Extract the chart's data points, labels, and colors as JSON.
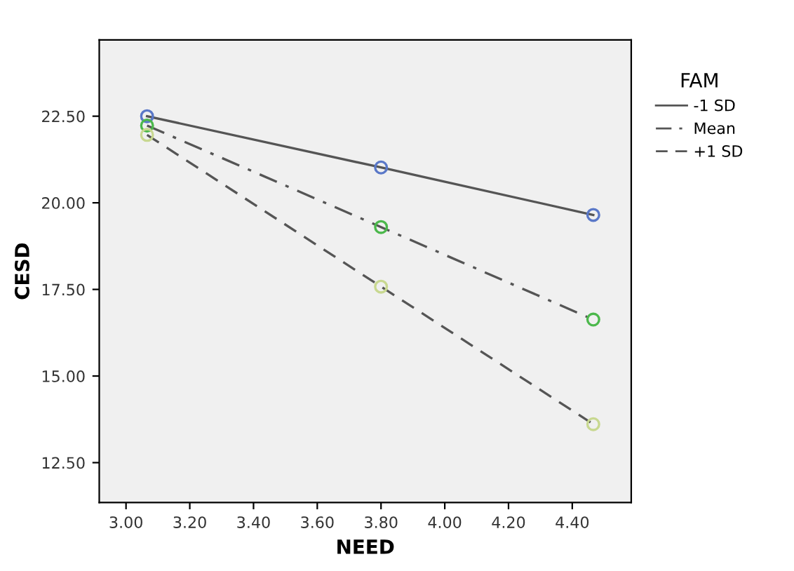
{
  "chart_data": {
    "type": "line",
    "xlabel": "NEED",
    "ylabel": "CESD",
    "legend_title": "FAM",
    "legend": "top right",
    "grid": false,
    "marker": "circle",
    "xlim": [
      2.916,
      4.585
    ],
    "xticks": [
      {
        "value": 3.0,
        "label": "3.00"
      },
      {
        "value": 3.2,
        "label": "3.20"
      },
      {
        "value": 3.4,
        "label": "3.40"
      },
      {
        "value": 3.6,
        "label": "3.60"
      },
      {
        "value": 3.8,
        "label": "3.80"
      },
      {
        "value": 4.0,
        "label": "4.00"
      },
      {
        "value": 4.2,
        "label": "4.20"
      },
      {
        "value": 4.4,
        "label": "4.40"
      }
    ],
    "ylim": [
      11.35,
      24.7
    ],
    "yticks": [
      {
        "value": 12.5,
        "label": "12.50"
      },
      {
        "value": 15,
        "label": "15.00"
      },
      {
        "value": 17.5,
        "label": "17.50"
      },
      {
        "value": 20,
        "label": "20.00"
      },
      {
        "value": 22.5,
        "label": "22.50"
      }
    ],
    "x": [
      3.066,
      3.8,
      4.466
    ],
    "series": [
      {
        "name": "-1 SD",
        "color": "#5a78c8",
        "line_style": "solid",
        "values": [
          22.5,
          21.02,
          19.65
        ]
      },
      {
        "name": "Mean",
        "color": "#4cb84c",
        "line_style": "dashdot",
        "values": [
          22.23,
          19.3,
          16.63
        ]
      },
      {
        "name": "+1 SD",
        "color": "#c8d890",
        "line_style": "dashed",
        "values": [
          21.96,
          17.58,
          13.61
        ]
      }
    ]
  }
}
